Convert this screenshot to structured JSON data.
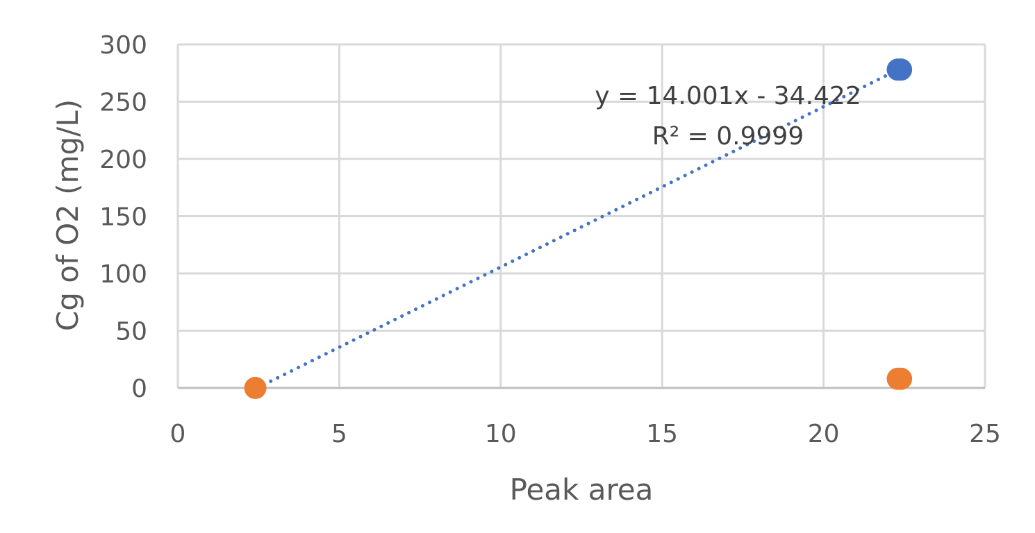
{
  "chart_data": {
    "type": "scatter",
    "title": "",
    "xlabel": "Peak area",
    "ylabel": "Cg of O2 (mg/L)",
    "xlim": [
      0,
      25
    ],
    "ylim": [
      0,
      300
    ],
    "x_ticks": [
      0,
      5,
      10,
      15,
      20,
      25
    ],
    "y_ticks": [
      0,
      50,
      100,
      150,
      200,
      250,
      300
    ],
    "grid": true,
    "legend": "none",
    "series": [
      {
        "color": "#4472c4",
        "points": [
          {
            "x": 22.3,
            "y": 278
          },
          {
            "x": 22.4,
            "y": 278
          }
        ]
      },
      {
        "color": "#ed7d31",
        "points": [
          {
            "x": 2.4,
            "y": 0
          },
          {
            "x": 22.3,
            "y": 8
          },
          {
            "x": 22.4,
            "y": 8
          }
        ]
      }
    ],
    "trendline": {
      "type": "linear",
      "style": "dotted",
      "color": "#4472c4",
      "slope": 14.001,
      "intercept": -34.422,
      "x_range": [
        2.45,
        22.3
      ],
      "equation_label": "y = 14.001x - 34.422",
      "r2_label": "R² = 0.9999"
    }
  }
}
